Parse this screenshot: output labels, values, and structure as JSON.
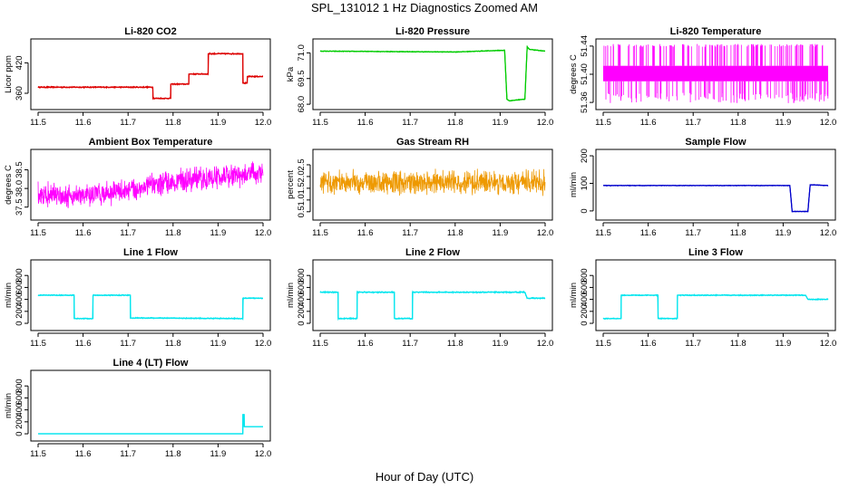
{
  "figure": {
    "title": "SPL_131012 1 Hz Diagnostics Zoomed AM",
    "xlabel": "Hour of Day (UTC)"
  },
  "chart_data": [
    {
      "id": "co2",
      "type": "line",
      "title": "Li-820 CO2",
      "ylabel": "Licor ppm",
      "color": "#dd0000",
      "xlim": [
        11.5,
        12.0
      ],
      "ylim": [
        335,
        460
      ],
      "xticks": [
        11.5,
        11.6,
        11.7,
        11.8,
        11.9,
        12.0
      ],
      "yticks": [
        360,
        420
      ],
      "noise": 1.2,
      "style": "line",
      "x": [
        11.5,
        11.755,
        11.755,
        11.795,
        11.795,
        11.835,
        11.835,
        11.878,
        11.878,
        11.955,
        11.955,
        11.965,
        11.965,
        12.0
      ],
      "y": [
        372,
        372,
        350,
        350,
        378,
        378,
        398,
        398,
        438,
        438,
        380,
        380,
        393,
        393
      ]
    },
    {
      "id": "pressure",
      "type": "line",
      "title": "Li-820 Pressure",
      "ylabel": "kPa",
      "color": "#00cc00",
      "xlim": [
        11.5,
        12.0
      ],
      "ylim": [
        67.9,
        71.6
      ],
      "xticks": [
        11.5,
        11.6,
        11.7,
        11.8,
        11.9,
        12.0
      ],
      "yticks": [
        68.0,
        69.5,
        71.0
      ],
      "noise": 0.02,
      "style": "line",
      "x": [
        11.5,
        11.8,
        11.91,
        11.915,
        11.92,
        11.955,
        11.96,
        11.965,
        12.0
      ],
      "y": [
        71.1,
        71.05,
        71.15,
        68.3,
        68.2,
        68.3,
        71.35,
        71.2,
        71.1
      ]
    },
    {
      "id": "licor-temp",
      "type": "line",
      "title": "Li-820 Temperature",
      "ylabel": "degrees C",
      "color": "#ff00ff",
      "xlim": [
        11.5,
        12.0
      ],
      "ylim": [
        51.355,
        51.445
      ],
      "xticks": [
        11.5,
        11.6,
        11.7,
        11.8,
        11.9,
        12.0
      ],
      "yticks": [
        51.36,
        51.4,
        51.44
      ],
      "noise": 0.0,
      "style": "band",
      "band": {
        "low": 51.39,
        "high": 51.412,
        "spike_low": 51.359,
        "spike_high": 51.443
      }
    },
    {
      "id": "ambient",
      "type": "line",
      "title": "Ambient Box Temperature",
      "ylabel": "degrees C",
      "color": "#ff00ff",
      "xlim": [
        11.5,
        12.0
      ],
      "ylim": [
        37.25,
        38.95
      ],
      "xticks": [
        11.5,
        11.6,
        11.7,
        11.8,
        11.9,
        12.0
      ],
      "yticks": [
        37.5,
        38.0,
        38.5
      ],
      "noise": 0.0,
      "style": "noisy",
      "x": [
        11.5,
        11.6,
        11.7,
        11.8,
        11.9,
        12.0
      ],
      "y": [
        37.85,
        37.8,
        37.95,
        38.2,
        38.3,
        38.4
      ],
      "amp": 0.25
    },
    {
      "id": "rh",
      "type": "line",
      "title": "Gas Stream RH",
      "ylabel": "percent",
      "color": "#ee9900",
      "xlim": [
        11.5,
        12.0
      ],
      "ylim": [
        0.3,
        3.0
      ],
      "xticks": [
        11.5,
        11.6,
        11.7,
        11.8,
        11.9,
        12.0
      ],
      "yticks": [
        0.5,
        1.0,
        1.5,
        2.0,
        2.5
      ],
      "noise": 0.0,
      "style": "noisy",
      "x": [
        11.5,
        12.0
      ],
      "y": [
        1.75,
        1.75
      ],
      "amp": 0.4
    },
    {
      "id": "sample-flow",
      "type": "line",
      "title": "Sample Flow",
      "ylabel": "ml/min",
      "color": "#0000cc",
      "xlim": [
        11.5,
        12.0
      ],
      "ylim": [
        -20,
        210
      ],
      "xticks": [
        11.5,
        11.6,
        11.7,
        11.8,
        11.9,
        12.0
      ],
      "yticks": [
        0,
        100,
        200
      ],
      "noise": 1.0,
      "style": "line",
      "x": [
        11.5,
        11.915,
        11.92,
        11.955,
        11.96,
        12.0
      ],
      "y": [
        92,
        92,
        -2,
        -2,
        95,
        92
      ]
    },
    {
      "id": "line1",
      "type": "line",
      "title": "Line 1 Flow",
      "ylabel": "ml/min",
      "color": "#00e5ee",
      "xlim": [
        11.5,
        12.0
      ],
      "ylim": [
        -60,
        1000
      ],
      "xticks": [
        11.5,
        11.6,
        11.7,
        11.8,
        11.9,
        12.0
      ],
      "yticks": [
        0,
        200,
        400,
        600,
        800
      ],
      "noise": 8,
      "style": "line",
      "x": [
        11.5,
        11.58,
        11.58,
        11.622,
        11.622,
        11.705,
        11.705,
        11.955,
        11.955,
        12.0
      ],
      "y": [
        470,
        470,
        80,
        80,
        470,
        470,
        90,
        80,
        420,
        420
      ]
    },
    {
      "id": "line2",
      "type": "line",
      "title": "Line 2 Flow",
      "ylabel": "ml/min",
      "color": "#00e5ee",
      "xlim": [
        11.5,
        12.0
      ],
      "ylim": [
        -60,
        1000
      ],
      "xticks": [
        11.5,
        11.6,
        11.7,
        11.8,
        11.9,
        12.0
      ],
      "yticks": [
        0,
        200,
        400,
        600,
        800
      ],
      "noise": 10,
      "style": "line",
      "x": [
        11.5,
        11.54,
        11.54,
        11.582,
        11.582,
        11.665,
        11.665,
        11.705,
        11.705,
        11.955,
        11.96,
        12.0
      ],
      "y": [
        520,
        520,
        80,
        80,
        520,
        520,
        80,
        80,
        520,
        520,
        420,
        420
      ]
    },
    {
      "id": "line3",
      "type": "line",
      "title": "Line 3 Flow",
      "ylabel": "ml/min",
      "color": "#00e5ee",
      "xlim": [
        11.5,
        12.0
      ],
      "ylim": [
        -60,
        1000
      ],
      "xticks": [
        11.5,
        11.6,
        11.7,
        11.8,
        11.9,
        12.0
      ],
      "yticks": [
        0,
        200,
        400,
        600,
        800
      ],
      "noise": 8,
      "style": "line",
      "x": [
        11.5,
        11.54,
        11.54,
        11.622,
        11.622,
        11.665,
        11.665,
        11.95,
        11.955,
        12.0
      ],
      "y": [
        80,
        80,
        470,
        470,
        80,
        80,
        470,
        470,
        400,
        400
      ]
    },
    {
      "id": "line4",
      "type": "line",
      "title": "Line 4 (LT) Flow",
      "ylabel": "ml/min",
      "color": "#00e5ee",
      "xlim": [
        11.5,
        12.0
      ],
      "ylim": [
        -60,
        1000
      ],
      "xticks": [
        11.5,
        11.6,
        11.7,
        11.8,
        11.9,
        12.0
      ],
      "yticks": [
        0,
        200,
        400,
        600,
        800
      ],
      "noise": 0,
      "style": "line",
      "x": [
        11.5,
        11.955,
        11.955,
        11.958,
        11.958,
        12.0
      ],
      "y": [
        0,
        0,
        320,
        320,
        120,
        120
      ]
    }
  ]
}
